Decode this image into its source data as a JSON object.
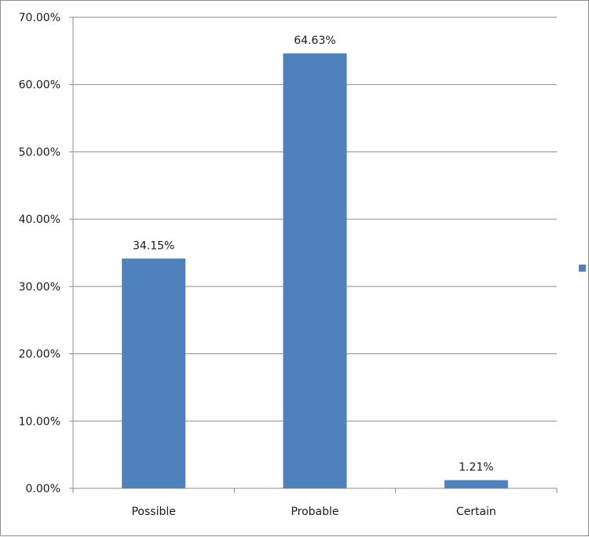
{
  "chart_data": {
    "type": "bar",
    "categories": [
      "Possible",
      "Probable",
      "Certain"
    ],
    "series": [
      {
        "values": [
          34.15,
          64.63,
          1.21
        ],
        "color": "#4f81bd"
      }
    ],
    "data_labels": [
      "34.15%",
      "64.63%",
      "1.21%"
    ],
    "y_ticks": [
      "0.00%",
      "10.00%",
      "20.00%",
      "30.00%",
      "40.00%",
      "50.00%",
      "60.00%",
      "70.00%"
    ],
    "ylim": [
      0,
      70
    ],
    "y_step": 10,
    "title": "",
    "xlabel": "",
    "ylabel": "",
    "grid": "horizontal",
    "legend": {
      "placement": "right",
      "entries": [
        ""
      ]
    },
    "colors": {
      "bar": "#4f81bd",
      "grid": "#8c8c8c",
      "axis": "#8c8c8c",
      "text": "#1a1a1a",
      "border": "#8c8c8c"
    }
  }
}
